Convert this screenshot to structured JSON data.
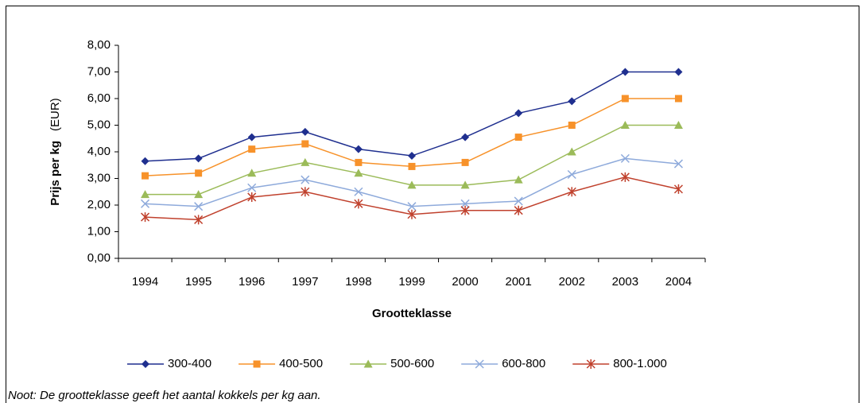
{
  "chart_data": {
    "type": "line",
    "xlabel": "Grootteklasse",
    "ylabel": "Prijs per kg",
    "ylabel_unit": "(EUR)",
    "note": "Noot: De grootteklasse geeft het aantal kokkels per kg aan.",
    "categories": [
      "1994",
      "1995",
      "1996",
      "1997",
      "1998",
      "1999",
      "2000",
      "2001",
      "2002",
      "2003",
      "2004"
    ],
    "ylim": [
      0,
      8
    ],
    "yticks": [
      {
        "value": 0,
        "label": "0,00"
      },
      {
        "value": 1,
        "label": "1,00"
      },
      {
        "value": 2,
        "label": "2,00"
      },
      {
        "value": 3,
        "label": "3,00"
      },
      {
        "value": 4,
        "label": "4,00"
      },
      {
        "value": 5,
        "label": "5,00"
      },
      {
        "value": 6,
        "label": "6,00"
      },
      {
        "value": 7,
        "label": "7,00"
      },
      {
        "value": 8,
        "label": "8,00"
      }
    ],
    "legend": "bottom",
    "series": [
      {
        "name": "300-400",
        "color": "#1f2f8f",
        "marker": "diamond",
        "values": [
          3.65,
          3.75,
          4.55,
          4.75,
          4.1,
          3.85,
          4.55,
          5.45,
          5.9,
          7.0,
          7.0
        ]
      },
      {
        "name": "400-500",
        "color": "#f7922a",
        "marker": "square",
        "values": [
          3.1,
          3.2,
          4.1,
          4.3,
          3.6,
          3.45,
          3.6,
          4.55,
          5.0,
          6.0,
          6.0
        ]
      },
      {
        "name": "500-600",
        "color": "#9bbb59",
        "marker": "triangle",
        "values": [
          2.4,
          2.4,
          3.2,
          3.6,
          3.2,
          2.75,
          2.75,
          2.95,
          4.0,
          5.0,
          5.0
        ]
      },
      {
        "name": "600-800",
        "color": "#8eaadb",
        "marker": "x",
        "values": [
          2.05,
          1.95,
          2.65,
          2.95,
          2.5,
          1.95,
          2.05,
          2.15,
          3.15,
          3.75,
          3.55
        ]
      },
      {
        "name": "800-1.000",
        "color": "#c0412d",
        "marker": "star",
        "values": [
          1.55,
          1.45,
          2.3,
          2.5,
          2.05,
          1.65,
          1.8,
          1.8,
          2.5,
          3.05,
          2.6
        ]
      }
    ]
  }
}
